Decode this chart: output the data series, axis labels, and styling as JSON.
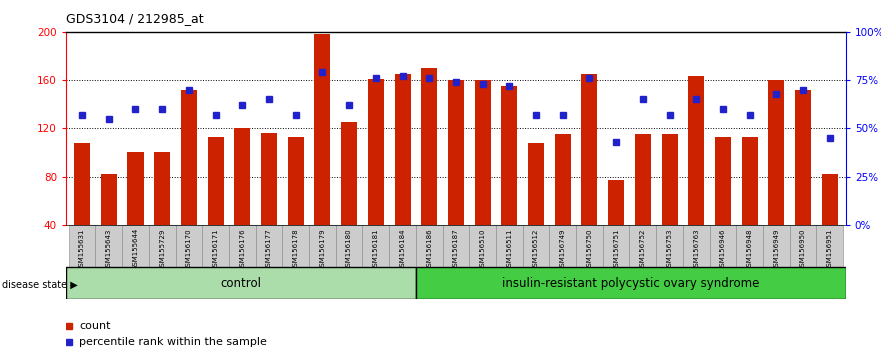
{
  "title": "GDS3104 / 212985_at",
  "categories": [
    "GSM155631",
    "GSM155643",
    "GSM155644",
    "GSM155729",
    "GSM156170",
    "GSM156171",
    "GSM156176",
    "GSM156177",
    "GSM156178",
    "GSM156179",
    "GSM156180",
    "GSM156181",
    "GSM156184",
    "GSM156186",
    "GSM156187",
    "GSM156510",
    "GSM156511",
    "GSM156512",
    "GSM156749",
    "GSM156750",
    "GSM156751",
    "GSM156752",
    "GSM156753",
    "GSM156763",
    "GSM156946",
    "GSM156948",
    "GSM156949",
    "GSM156950",
    "GSM156951"
  ],
  "bar_values": [
    108,
    82,
    100,
    100,
    152,
    113,
    120,
    116,
    113,
    198,
    125,
    161,
    165,
    170,
    160,
    160,
    155,
    108,
    115,
    165,
    77,
    115,
    115,
    163,
    113,
    113,
    160,
    152,
    82
  ],
  "percentile_values": [
    57,
    55,
    60,
    60,
    70,
    57,
    62,
    65,
    57,
    79,
    62,
    76,
    77,
    76,
    74,
    73,
    72,
    57,
    57,
    76,
    43,
    65,
    57,
    65,
    60,
    57,
    68,
    70,
    45
  ],
  "control_count": 13,
  "disease_count": 16,
  "bar_color": "#cc2200",
  "percentile_color": "#2222cc",
  "ylim_left": [
    40,
    200
  ],
  "ylim_right": [
    0,
    100
  ],
  "yticks_left": [
    40,
    80,
    120,
    160,
    200
  ],
  "yticks_right": [
    0,
    25,
    50,
    75,
    100
  ],
  "yticklabels_right": [
    "0%",
    "25%",
    "50%",
    "75%",
    "100%"
  ],
  "bg_color": "#ffffff",
  "label_area_color": "#cccccc",
  "control_label": "control",
  "disease_label": "insulin-resistant polycystic ovary syndrome",
  "disease_state_label": "disease state",
  "legend_count_label": "count",
  "legend_pct_label": "percentile rank within the sample",
  "control_bg": "#aaddaa",
  "disease_bg": "#44cc44"
}
